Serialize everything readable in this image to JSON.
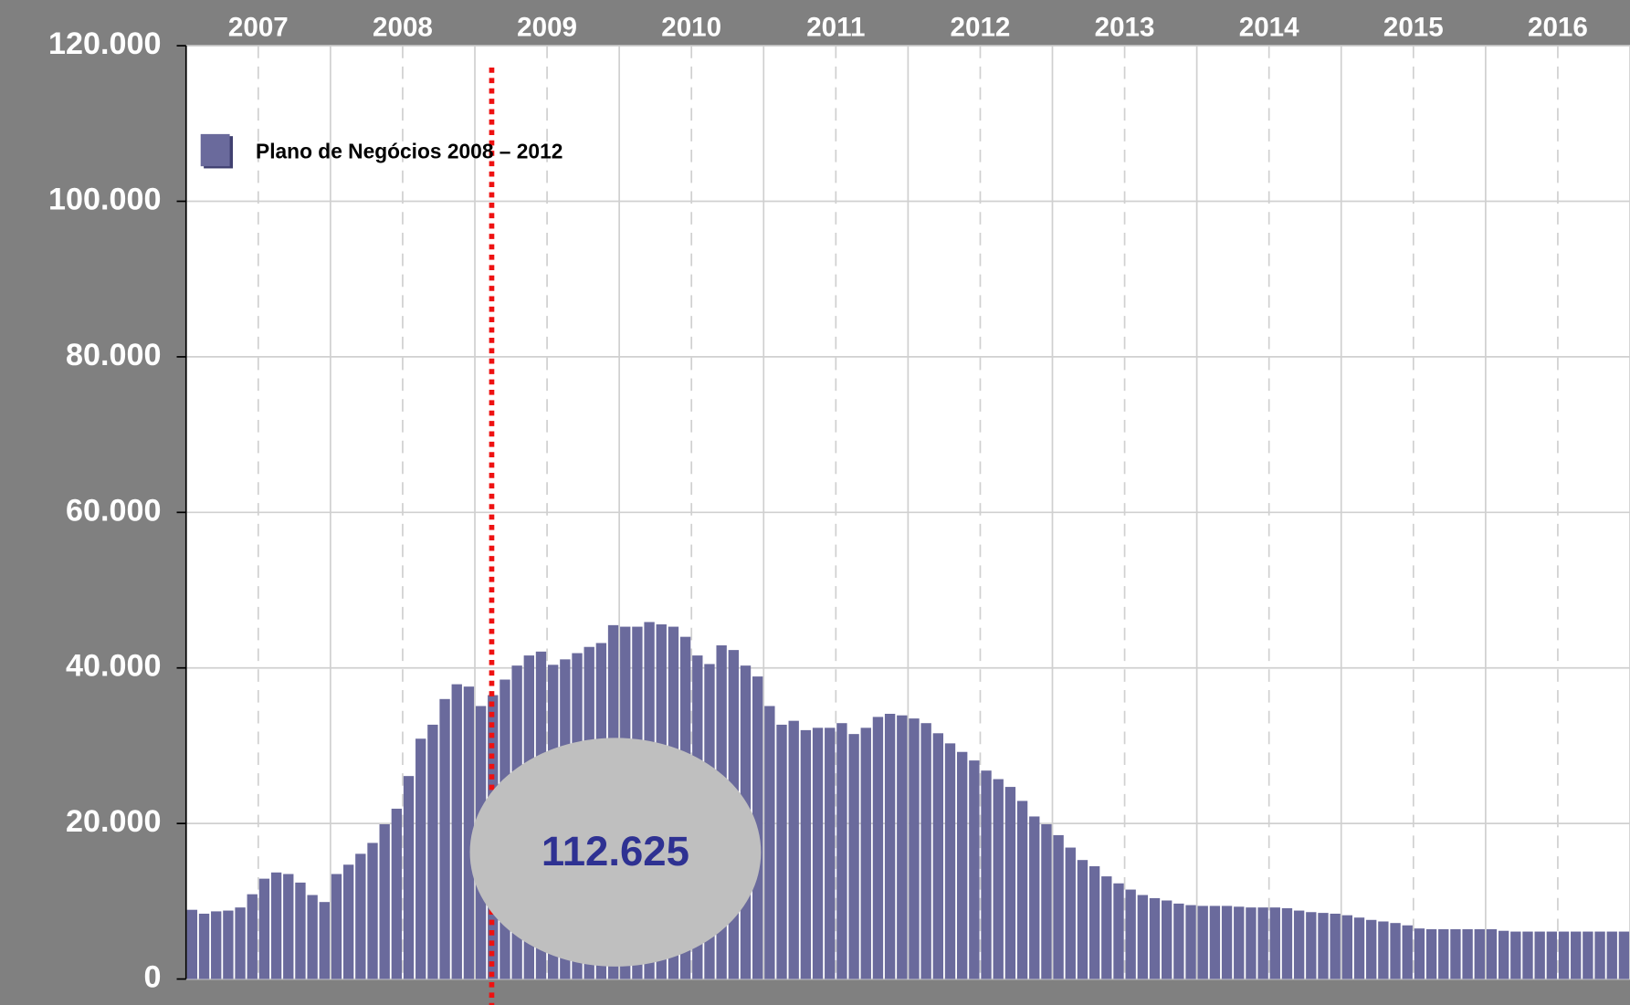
{
  "chart_data": {
    "type": "bar",
    "x_labels": [
      "2007",
      "2008",
      "2009",
      "2010",
      "2011",
      "2012",
      "2013",
      "2014",
      "2015",
      "2016"
    ],
    "values": [
      8900,
      8400,
      8700,
      8800,
      9200,
      10900,
      12900,
      13700,
      13500,
      12400,
      10800,
      9900,
      13500,
      14700,
      16100,
      17500,
      19900,
      21900,
      26100,
      30900,
      32700,
      36000,
      37900,
      37600,
      35100,
      36500,
      38500,
      40300,
      41600,
      42100,
      40400,
      41100,
      41900,
      42700,
      43200,
      45500,
      45300,
      45300,
      45900,
      45600,
      45300,
      44000,
      41600,
      40500,
      42900,
      42300,
      40300,
      38900,
      35100,
      32700,
      33200,
      32000,
      32300,
      32300,
      32900,
      31500,
      32300,
      33700,
      34100,
      33900,
      33500,
      32900,
      31600,
      30300,
      29200,
      28100,
      26800,
      25700,
      24700,
      22900,
      20900,
      19900,
      18500,
      16900,
      15300,
      14500,
      13200,
      12300,
      11500,
      10800,
      10400,
      10100,
      9700,
      9500,
      9400,
      9400,
      9400,
      9300,
      9200,
      9200,
      9200,
      9100,
      8800,
      8600,
      8500,
      8400,
      8200,
      7900,
      7600,
      7400,
      7200,
      6900,
      6500,
      6400,
      6400,
      6400,
      6400,
      6400,
      6400,
      6200,
      6100,
      6100,
      6100,
      6100,
      6100,
      6100,
      6100,
      6100,
      6100,
      6100
    ],
    "color": "#6a6a9c",
    "series_name": "Plano de Negócios 2008 – 2012",
    "annotation": "112.625",
    "ylim": [
      0,
      120000
    ],
    "yticks": [
      0,
      {
        "value": 20000,
        "label": "20.000"
      },
      {
        "value": 40000,
        "label": "40.000"
      },
      {
        "value": 60000,
        "label": "60.000"
      },
      {
        "value": 80000,
        "label": "80.000"
      },
      {
        "value": 100000,
        "label": "100.000"
      },
      {
        "value": 120000,
        "label": "120.000"
      }
    ],
    "grid": true
  }
}
